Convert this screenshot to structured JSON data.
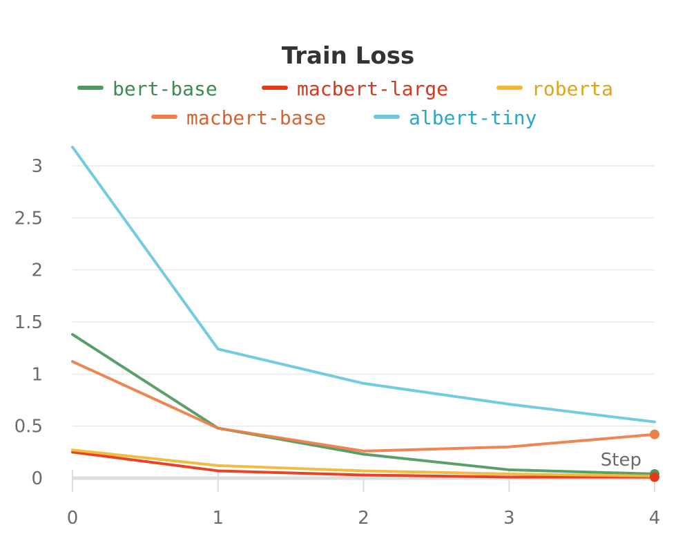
{
  "chart_data": {
    "type": "line",
    "title": "Train Loss",
    "xlabel": "Step",
    "ylabel": "",
    "x": [
      0,
      1,
      2,
      3,
      4
    ],
    "xlim": [
      0,
      4
    ],
    "ylim": [
      0,
      3.2
    ],
    "xticks": [
      "0",
      "1",
      "2",
      "3",
      "4"
    ],
    "yticks": [
      {
        "value": 0,
        "label": "0"
      },
      {
        "value": 0.5,
        "label": "0.5"
      },
      {
        "value": 1,
        "label": "1"
      },
      {
        "value": 1.5,
        "label": "1.5"
      },
      {
        "value": 2,
        "label": "2"
      },
      {
        "value": 2.5,
        "label": "2.5"
      },
      {
        "value": 3,
        "label": "3"
      }
    ],
    "grid": true,
    "legend_position": "top",
    "series": [
      {
        "name": "bert-base",
        "color": "#4f9a62",
        "label_color": "#3d8a52",
        "values": [
          1.38,
          0.48,
          0.23,
          0.08,
          0.04
        ],
        "end_marker": true
      },
      {
        "name": "macbert-large",
        "color": "#e53a17",
        "label_color": "#d9361a",
        "values": [
          0.25,
          0.07,
          0.03,
          0.01,
          0.01
        ],
        "end_marker": true
      },
      {
        "name": "roberta",
        "color": "#f0b838",
        "label_color": "#e0a417",
        "values": [
          0.27,
          0.12,
          0.07,
          0.04,
          0.02
        ],
        "end_marker": false
      },
      {
        "name": "macbert-base",
        "color": "#ec7f4a",
        "label_color": "#d8622d",
        "values": [
          1.12,
          0.48,
          0.26,
          0.3,
          0.42
        ],
        "end_marker": true
      },
      {
        "name": "albert-tiny",
        "color": "#6cc8de",
        "label_color": "#2aa6c8",
        "values": [
          3.18,
          1.24,
          0.91,
          0.71,
          0.54
        ],
        "end_marker": false
      }
    ]
  }
}
